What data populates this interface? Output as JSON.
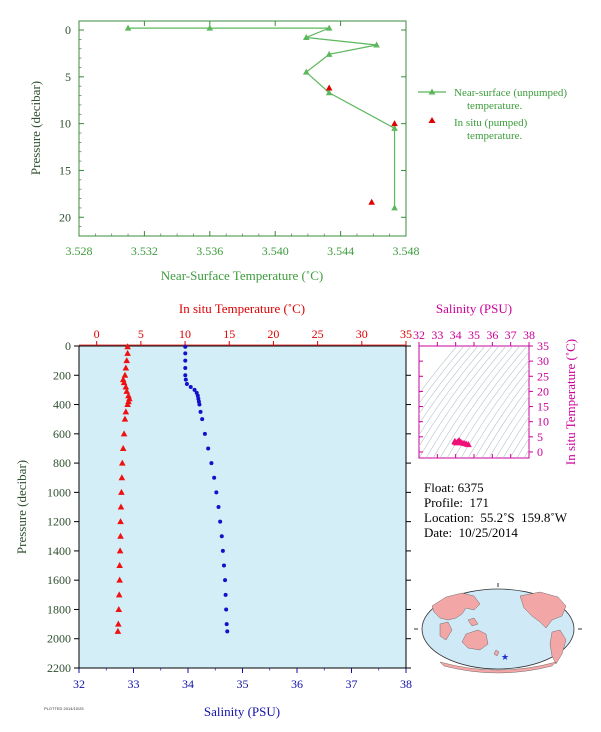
{
  "chart_data": [
    {
      "id": "near_surface",
      "type": "line",
      "title": "",
      "xlabel": "Near-Surface Temperature (˚C)",
      "ylabel": "Pressure (decibar)",
      "xlim": [
        3.528,
        3.548
      ],
      "ylim": [
        0,
        22
      ],
      "y_inverted": true,
      "x_ticks": [
        "3.528",
        "3.532",
        "3.536",
        "3.540",
        "3.544",
        "3.548"
      ],
      "y_ticks": [
        "0",
        "5",
        "10",
        "15",
        "20"
      ],
      "legend": [
        "Near-surface (unpumped) temperature.",
        "In situ (pumped) temperature."
      ],
      "legend_placement": "right",
      "series": [
        {
          "name": "Near-surface (unpumped) temperature.",
          "color": "#5cb85c",
          "marker": "triangle",
          "x": [
            3.531,
            3.536,
            3.5433,
            3.5419,
            3.5462,
            3.5433,
            3.5419,
            3.5433,
            3.5473,
            3.5473
          ],
          "y": [
            -0.2,
            -0.2,
            -0.2,
            0.8,
            1.6,
            2.6,
            4.5,
            6.7,
            10.5,
            19.0
          ]
        },
        {
          "name": "In situ (pumped) temperature.",
          "color": "#dd0000",
          "marker": "triangle",
          "x": [
            3.5433,
            3.5473,
            3.5459
          ],
          "y": [
            6.2,
            10.0,
            18.4
          ]
        }
      ]
    },
    {
      "id": "profile",
      "type": "scatter",
      "title": "",
      "top_axis_label": "In situ Temperature (˚C)",
      "bottom_axis_label": "Salinity (PSU)",
      "ylabel": "Pressure (decibar)",
      "temp_lim": [
        -2,
        35
      ],
      "sal_lim": [
        32,
        38
      ],
      "ylim": [
        0,
        2200
      ],
      "y_inverted": true,
      "temp_ticks": [
        "0",
        "5",
        "10",
        "15",
        "20",
        "25",
        "30",
        "35"
      ],
      "sal_ticks": [
        "32",
        "33",
        "34",
        "35",
        "36",
        "37",
        "38"
      ],
      "y_ticks": [
        "0",
        "200",
        "400",
        "600",
        "800",
        "1000",
        "1200",
        "1400",
        "1600",
        "1800",
        "2000",
        "2200"
      ],
      "background": "#d4eef8",
      "series": [
        {
          "name": "In situ Temperature (˚C)",
          "axis": "temperature",
          "color": "#ee1111",
          "marker": "triangle",
          "pressure": [
            5,
            50,
            100,
            150,
            200,
            230,
            250,
            280,
            310,
            340,
            360,
            380,
            400,
            450,
            500,
            600,
            700,
            800,
            900,
            1000,
            1100,
            1200,
            1300,
            1400,
            1500,
            1600,
            1700,
            1800,
            1900,
            1950
          ],
          "values": [
            3.5,
            3.5,
            3.4,
            3.3,
            3.2,
            3.0,
            3.1,
            3.3,
            3.4,
            3.6,
            3.7,
            3.6,
            3.5,
            3.3,
            3.2,
            3.1,
            3.0,
            2.9,
            2.85,
            2.8,
            2.75,
            2.7,
            2.7,
            2.65,
            2.6,
            2.6,
            2.55,
            2.5,
            2.45,
            2.4
          ]
        },
        {
          "name": "Salinity (PSU)",
          "axis": "salinity",
          "color": "#1111cc",
          "marker": "dot",
          "pressure": [
            5,
            50,
            100,
            150,
            200,
            230,
            260,
            280,
            300,
            320,
            340,
            360,
            380,
            400,
            450,
            500,
            600,
            700,
            800,
            900,
            1000,
            1100,
            1200,
            1300,
            1400,
            1500,
            1600,
            1700,
            1800,
            1900,
            1950
          ],
          "values": [
            33.95,
            33.95,
            33.95,
            33.95,
            33.95,
            33.96,
            33.98,
            34.05,
            34.12,
            34.16,
            34.18,
            34.19,
            34.2,
            34.21,
            34.23,
            34.26,
            34.31,
            34.37,
            34.43,
            34.48,
            34.52,
            34.56,
            34.59,
            34.62,
            34.64,
            34.66,
            34.68,
            34.69,
            34.7,
            34.71,
            34.72
          ]
        }
      ]
    },
    {
      "id": "ts_diagram",
      "type": "scatter",
      "title": "",
      "xlabel": "Salinity (PSU)",
      "ylabel": "In situ Temperature (˚C)",
      "xlim": [
        32,
        38
      ],
      "ylim": [
        -2,
        35
      ],
      "x_ticks": [
        "32",
        "33",
        "34",
        "35",
        "36",
        "37",
        "38"
      ],
      "y_ticks": [
        "0",
        "5",
        "10",
        "15",
        "20",
        "25",
        "30",
        "35"
      ],
      "color": "#cc0099",
      "series": [
        {
          "name": "T-S",
          "color": "#ee1177",
          "salinity": [
            33.95,
            33.96,
            33.98,
            34.05,
            34.1,
            34.16,
            34.2,
            34.25,
            34.3,
            34.4,
            34.5,
            34.6,
            34.7
          ],
          "temperature": [
            3.5,
            3.4,
            3.2,
            3.0,
            3.3,
            3.6,
            3.7,
            3.3,
            3.1,
            2.9,
            2.8,
            2.6,
            2.4
          ]
        }
      ]
    }
  ],
  "info": {
    "float_label": "Float:",
    "float_value": "6375",
    "profile_label": "Profile:",
    "profile_value": "171",
    "location_label": "Location:",
    "location_value": "55.2˚S  159.8˚W",
    "date_label": "Date:",
    "date_value": "10/25/2014"
  },
  "map": {
    "ocean_color": "#cfe9f6",
    "land_color": "#f2a6a6",
    "marker_color": "#1a33cc",
    "marker_lat": -55.2,
    "marker_lon": -159.8
  },
  "footer": {
    "stamp": "PLOTTED 2014/10/25"
  }
}
